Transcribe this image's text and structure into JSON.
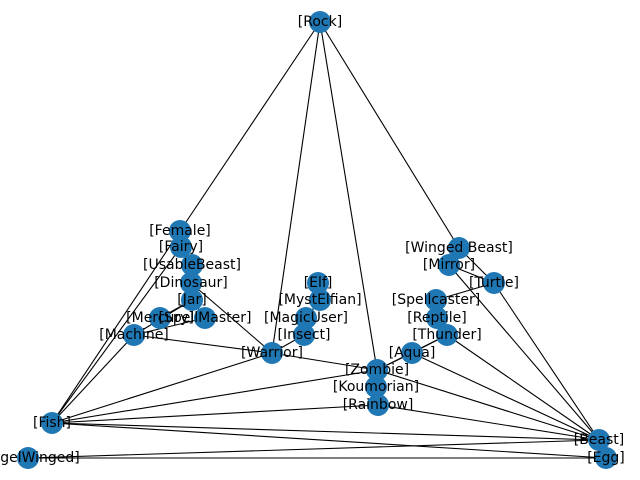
{
  "colors": {
    "node": "#1f77b4",
    "edge": "#000000",
    "label": "#000000",
    "background": "#ffffff"
  },
  "nodes": [
    {
      "id": "rock",
      "label": "[Rock]"
    },
    {
      "id": "female",
      "label": "[Female]"
    },
    {
      "id": "fairy",
      "label": "[Fairy]"
    },
    {
      "id": "usablebeast",
      "label": "[UsableBeast]"
    },
    {
      "id": "dinosaur",
      "label": "[Dinosaur]"
    },
    {
      "id": "jar",
      "label": "[Jar]"
    },
    {
      "id": "mercury",
      "label": "[Mercury]"
    },
    {
      "id": "spellmaster",
      "label": "[SpellMaster]"
    },
    {
      "id": "machine",
      "label": "[Machine]"
    },
    {
      "id": "elf",
      "label": "[Elf]"
    },
    {
      "id": "mystelfian",
      "label": "[MystElfian]"
    },
    {
      "id": "magicuser",
      "label": "[MagicUser]"
    },
    {
      "id": "insect",
      "label": "[Insect]"
    },
    {
      "id": "warrior",
      "label": "[Warrior]"
    },
    {
      "id": "wingedbeast",
      "label": "[Winged Beast]"
    },
    {
      "id": "mirror",
      "label": "[Mirror]"
    },
    {
      "id": "turtle",
      "label": "[Turtle]"
    },
    {
      "id": "spellcaster",
      "label": "[Spellcaster]"
    },
    {
      "id": "reptile",
      "label": "[Reptile]"
    },
    {
      "id": "thunder",
      "label": "[Thunder]"
    },
    {
      "id": "aqua",
      "label": "[Aqua]"
    },
    {
      "id": "zombie",
      "label": "[Zombie]"
    },
    {
      "id": "koumorian",
      "label": "[Koumorian]"
    },
    {
      "id": "rainbow",
      "label": "[Rainbow]"
    },
    {
      "id": "fish",
      "label": "[Fish]"
    },
    {
      "id": "beast",
      "label": "[Beast]"
    },
    {
      "id": "angelwinged",
      "label": "[AngelWinged]"
    },
    {
      "id": "egg",
      "label": "[Egg]"
    }
  ],
  "edges": [
    [
      "rock",
      "female"
    ],
    [
      "rock",
      "warrior"
    ],
    [
      "rock",
      "zombie"
    ],
    [
      "rock",
      "wingedbeast"
    ],
    [
      "female",
      "fairy"
    ],
    [
      "fairy",
      "usablebeast"
    ],
    [
      "usablebeast",
      "dinosaur"
    ],
    [
      "dinosaur",
      "jar"
    ],
    [
      "jar",
      "spellmaster"
    ],
    [
      "jar",
      "machine"
    ],
    [
      "jar",
      "mercury"
    ],
    [
      "dinosaur",
      "warrior"
    ],
    [
      "female",
      "fish"
    ],
    [
      "fairy",
      "fish"
    ],
    [
      "machine",
      "fish"
    ],
    [
      "machine",
      "warrior"
    ],
    [
      "machine",
      "spellmaster"
    ],
    [
      "elf",
      "mystelfian"
    ],
    [
      "mystelfian",
      "magicuser"
    ],
    [
      "magicuser",
      "insect"
    ],
    [
      "insect",
      "warrior"
    ],
    [
      "warrior",
      "fish"
    ],
    [
      "warrior",
      "zombie"
    ],
    [
      "fish",
      "zombie"
    ],
    [
      "fish",
      "rainbow"
    ],
    [
      "fish",
      "beast"
    ],
    [
      "fish",
      "egg"
    ],
    [
      "zombie",
      "koumorian"
    ],
    [
      "koumorian",
      "rainbow"
    ],
    [
      "zombie",
      "rainbow"
    ],
    [
      "zombie",
      "aqua"
    ],
    [
      "zombie",
      "thunder"
    ],
    [
      "zombie",
      "beast"
    ],
    [
      "rainbow",
      "beast"
    ],
    [
      "wingedbeast",
      "mirror"
    ],
    [
      "wingedbeast",
      "turtle"
    ],
    [
      "mirror",
      "turtle"
    ],
    [
      "turtle",
      "spellcaster"
    ],
    [
      "spellcaster",
      "reptile"
    ],
    [
      "reptile",
      "thunder"
    ],
    [
      "thunder",
      "aqua"
    ],
    [
      "thunder",
      "beast"
    ],
    [
      "turtle",
      "beast"
    ],
    [
      "mirror",
      "beast"
    ],
    [
      "aqua",
      "beast"
    ],
    [
      "angelwinged",
      "beast"
    ],
    [
      "angelwinged",
      "egg"
    ],
    [
      "beast",
      "egg"
    ]
  ]
}
